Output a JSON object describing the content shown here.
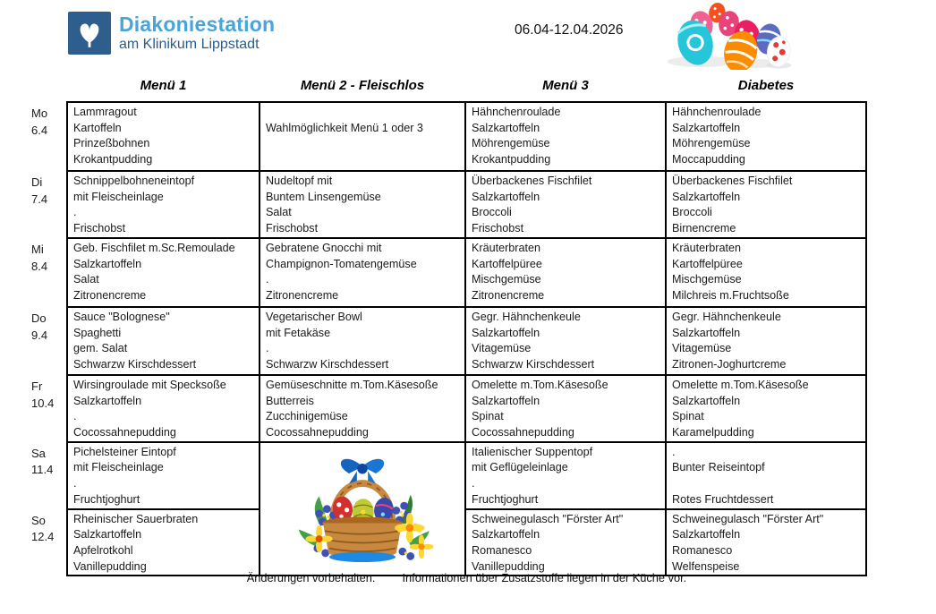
{
  "header": {
    "logo_title": "Diakoniestation",
    "logo_subtitle": "am Klinikum Lippstadt",
    "logo_icon": "kronenkreuz-crown-cross-icon",
    "date_range": "06.04-12.04.2026",
    "decoration": "easter-eggs-image"
  },
  "columns": [
    "Menü 1",
    "Menü 2 -  Fleischlos",
    "Menü 3",
    "Diabetes"
  ],
  "days": [
    {
      "day": "Mo",
      "date": "6.4",
      "menus": [
        [
          "Lammragout",
          "Kartoffeln",
          "Prinzeßbohnen",
          "Krokantpudding"
        ],
        [
          "",
          "Wahlmöglichkeit Menü 1 oder 3",
          "",
          ""
        ],
        [
          "Hähnchenroulade",
          "Salzkartoffeln",
          "Möhrengemüse",
          "Krokantpudding"
        ],
        [
          "Hähnchenroulade",
          "Salzkartoffeln",
          "Möhrengemüse",
          "Moccapudding"
        ]
      ]
    },
    {
      "day": "Di",
      "date": "7.4",
      "menus": [
        [
          "Schnippelbohneneintopf",
          "mit Fleischeinlage",
          ".",
          "Frischobst"
        ],
        [
          "Nudeltopf mit",
          "Buntem Linsengemüse",
          "Salat",
          "Frischobst"
        ],
        [
          "Überbackenes Fischfilet",
          "Salzkartoffeln",
          "Broccoli",
          "Frischobst"
        ],
        [
          "Überbackenes Fischfilet",
          "Salzkartoffeln",
          "Broccoli",
          "Birnencreme"
        ]
      ]
    },
    {
      "day": "Mi",
      "date": "8.4",
      "menus": [
        [
          "Geb. Fischfilet m.Sc.Remoulade",
          "Salzkartoffeln",
          "Salat",
          "Zitronencreme"
        ],
        [
          "Gebratene Gnocchi mit",
          "Champignon-Tomatengemüse",
          ".",
          "Zitronencreme"
        ],
        [
          "Kräuterbraten",
          "Kartoffelpüree",
          "Mischgemüse",
          "Zitronencreme"
        ],
        [
          "Kräuterbraten",
          "Kartoffelpüree",
          "Mischgemüse",
          "Milchreis m.Fruchtsoße"
        ]
      ]
    },
    {
      "day": "Do",
      "date": "9.4",
      "menus": [
        [
          "Sauce \"Bolognese\"",
          "Spaghetti",
          "gem. Salat",
          "Schwarzw Kirschdessert"
        ],
        [
          "Vegetarischer Bowl",
          "mit Fetakäse",
          ".",
          "Schwarzw Kirschdessert"
        ],
        [
          "Gegr. Hähnchenkeule",
          "Salzkartoffeln",
          "Vitagemüse",
          "Schwarzw Kirschdessert"
        ],
        [
          "Gegr. Hähnchenkeule",
          "Salzkartoffeln",
          "Vitagemüse",
          "Zitronen-Joghurtcreme"
        ]
      ]
    },
    {
      "day": "Fr",
      "date": "10.4",
      "menus": [
        [
          "Wirsingroulade mit Specksoße",
          "Salzkartoffeln",
          ".",
          "Cocossahnepudding"
        ],
        [
          "Gemüseschnitte m.Tom.Käsesoße",
          "Butterreis",
          "Zucchinigemüse",
          "Cocossahnepudding"
        ],
        [
          "Omelette m.Tom.Käsesoße",
          "Salzkartoffeln",
          "Spinat",
          "Cocossahnepudding"
        ],
        [
          "Omelette m.Tom.Käsesoße",
          "Salzkartoffeln",
          "Spinat",
          "Karamelpudding"
        ]
      ]
    },
    {
      "day": "Sa",
      "date": "11.4",
      "menus": [
        [
          "Pichelsteiner Eintopf",
          "mit Fleischeinlage",
          ".",
          "Fruchtjoghurt"
        ],
        {
          "type": "image",
          "name": "easter-basket-image",
          "rowspan": 2
        },
        [
          "Italienischer Suppentopf",
          "mit Geflügeleinlage",
          ".",
          "Fruchtjoghurt"
        ],
        [
          ".",
          "Bunter Reiseintopf",
          "",
          "Rotes Fruchtdessert"
        ]
      ]
    },
    {
      "day": "So",
      "date": "12.4",
      "menus": [
        [
          "Rheinischer Sauerbraten",
          "Salzkartoffeln",
          "Apfelrotkohl",
          "Vanillepudding"
        ],
        null,
        [
          "Schweinegulasch \"Förster Art\"",
          "Salzkartoffeln",
          "Romanesco",
          "Vanillepudding"
        ],
        [
          "Schweinegulasch \"Förster Art\"",
          "Salzkartoffeln",
          "Romanesco",
          "Welfenspeise"
        ]
      ]
    }
  ],
  "footer": {
    "note1": "Änderungen vorbehalten.",
    "note2": "Informationen über Zusatzstoffe liegen in der Küche vor."
  },
  "colors": {
    "logo_square": "#2d5e8d",
    "logo_title_blue": "#49a5d9",
    "logo_subtitle_blue": "#2a5d8c",
    "table_border": "#000000",
    "text": "#1a1a1a"
  }
}
